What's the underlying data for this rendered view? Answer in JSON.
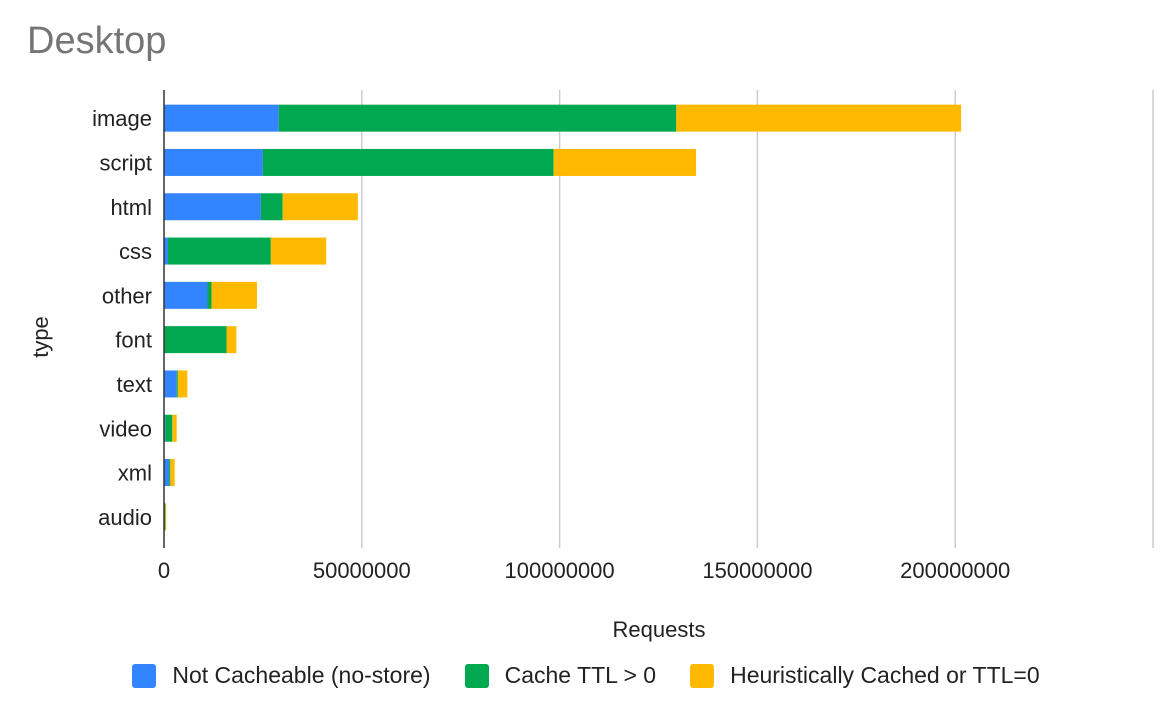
{
  "chart_data": {
    "type": "bar",
    "orientation": "horizontal",
    "stacked": true,
    "title": "Desktop",
    "xlabel": "Requests",
    "ylabel": "type",
    "xlim": [
      0,
      250000000
    ],
    "xticks": [
      0,
      50000000,
      100000000,
      150000000,
      200000000
    ],
    "xtick_labels": [
      "0",
      "50000000",
      "100000000",
      "150000000",
      "200000000"
    ],
    "grid": true,
    "legend_position": "bottom",
    "categories": [
      "image",
      "script",
      "html",
      "css",
      "other",
      "font",
      "text",
      "video",
      "xml",
      "audio"
    ],
    "series": [
      {
        "name": "Not Cacheable (no-store)",
        "color": "#3385ff",
        "values": [
          29000000,
          25000000,
          24500000,
          1000000,
          11000000,
          0,
          3200000,
          300000,
          1300000,
          150000
        ]
      },
      {
        "name": "Cache TTL > 0",
        "color": "#00a84f",
        "values": [
          100500000,
          73500000,
          5500000,
          26000000,
          1000000,
          15800000,
          300000,
          1800000,
          300000,
          200000
        ]
      },
      {
        "name": "Heuristically Cached or TTL=0",
        "color": "#ffba00",
        "values": [
          72000000,
          36000000,
          19000000,
          14000000,
          11500000,
          2500000,
          2400000,
          1100000,
          1100000,
          100000
        ]
      }
    ]
  }
}
